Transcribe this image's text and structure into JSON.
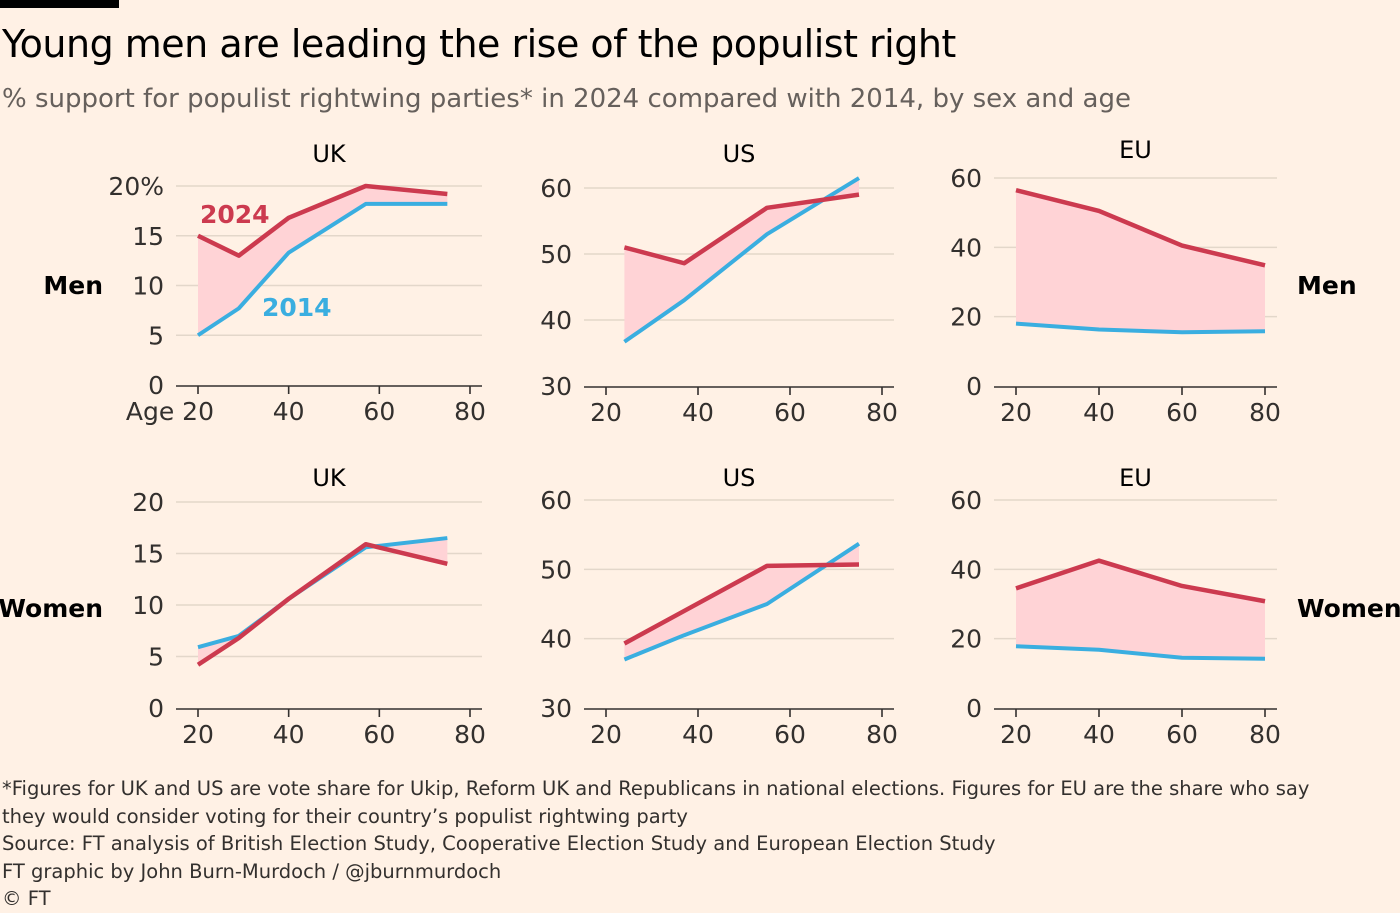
{
  "title": "Young men are leading the rise of the populist right",
  "subtitle": "% support for populist rightwing parties* in 2024 compared with 2014, by sex and age",
  "row_labels": {
    "men": "Men",
    "women": "Women"
  },
  "colors": {
    "2024": "#cc3a4f",
    "2014": "#3aaee0",
    "fill": "#ffd3d6",
    "grid": "#e3d7ca",
    "axis": "#33302e",
    "text": "#33302e"
  },
  "footnotes": [
    "*Figures for UK and US are vote share for Ukip, Reform UK and Republicans in national elections. Figures for EU are the share who say",
    "they would consider voting for their country’s populist rightwing party",
    "Source: FT analysis of British Election Study, Cooperative Election Study and European Election Study",
    "FT graphic by John Burn-Murdoch / @jburnmurdoch",
    "© FT"
  ],
  "chart_data": [
    {
      "type": "line",
      "region": "UK",
      "sex": "Men",
      "title": "UK",
      "xlim": [
        20,
        80
      ],
      "ylim": [
        0,
        20
      ],
      "xticks": [
        "Age 20",
        "40",
        "60",
        "80"
      ],
      "yticks": [
        "0",
        "5",
        "10",
        "15",
        "20%"
      ],
      "annotations": [
        "2024",
        "2014"
      ],
      "series": [
        {
          "name": "2024",
          "x": [
            20,
            29,
            40,
            57,
            75
          ],
          "y": [
            15,
            13,
            16.8,
            20,
            19.2
          ]
        },
        {
          "name": "2014",
          "x": [
            20,
            29,
            40,
            57,
            75
          ],
          "y": [
            5,
            7.7,
            13.3,
            18.2,
            18.2
          ]
        }
      ]
    },
    {
      "type": "line",
      "region": "US",
      "sex": "Men",
      "title": "US",
      "xlim": [
        20,
        80
      ],
      "ylim": [
        30,
        60
      ],
      "xticks": [
        "20",
        "40",
        "60",
        "80"
      ],
      "yticks": [
        "30",
        "40",
        "50",
        "60"
      ],
      "series": [
        {
          "name": "2024",
          "x": [
            24,
            37,
            55,
            75
          ],
          "y": [
            51,
            48.6,
            57,
            59
          ]
        },
        {
          "name": "2014",
          "x": [
            24,
            37,
            55,
            75
          ],
          "y": [
            36.7,
            43,
            53,
            61.5
          ]
        }
      ]
    },
    {
      "type": "line",
      "region": "EU",
      "sex": "Men",
      "title": "EU",
      "xlim": [
        20,
        80
      ],
      "ylim": [
        0,
        60
      ],
      "xticks": [
        "20",
        "40",
        "60",
        "80"
      ],
      "yticks": [
        "0",
        "20",
        "40",
        "60"
      ],
      "series": [
        {
          "name": "2024",
          "x": [
            20,
            40,
            60,
            80
          ],
          "y": [
            56.5,
            50.5,
            40.5,
            34.8
          ]
        },
        {
          "name": "2014",
          "x": [
            20,
            40,
            60,
            80
          ],
          "y": [
            18,
            16.3,
            15.5,
            15.8
          ]
        }
      ]
    },
    {
      "type": "line",
      "region": "UK",
      "sex": "Women",
      "title": "UK",
      "xlim": [
        20,
        80
      ],
      "ylim": [
        0,
        20
      ],
      "xticks": [
        "20",
        "40",
        "60",
        "80"
      ],
      "yticks": [
        "0",
        "5",
        "10",
        "15",
        "20"
      ],
      "series": [
        {
          "name": "2024",
          "x": [
            20,
            29,
            40,
            57,
            75
          ],
          "y": [
            4.2,
            6.8,
            10.6,
            15.9,
            14
          ]
        },
        {
          "name": "2014",
          "x": [
            20,
            29,
            40,
            57,
            75
          ],
          "y": [
            5.9,
            7,
            10.6,
            15.6,
            16.5
          ]
        }
      ]
    },
    {
      "type": "line",
      "region": "US",
      "sex": "Women",
      "title": "US",
      "xlim": [
        20,
        80
      ],
      "ylim": [
        30,
        60
      ],
      "xticks": [
        "20",
        "40",
        "60",
        "80"
      ],
      "yticks": [
        "30",
        "40",
        "50",
        "60"
      ],
      "series": [
        {
          "name": "2024",
          "x": [
            24,
            37,
            55,
            75
          ],
          "y": [
            39.3,
            44,
            50.5,
            50.7
          ]
        },
        {
          "name": "2014",
          "x": [
            24,
            37,
            55,
            75
          ],
          "y": [
            37,
            40.5,
            45,
            53.7
          ]
        }
      ]
    },
    {
      "type": "line",
      "region": "EU",
      "sex": "Women",
      "title": "EU",
      "xlim": [
        20,
        80
      ],
      "ylim": [
        0,
        60
      ],
      "xticks": [
        "20",
        "40",
        "60",
        "80"
      ],
      "yticks": [
        "0",
        "20",
        "40",
        "60"
      ],
      "series": [
        {
          "name": "2024",
          "x": [
            20,
            40,
            60,
            80
          ],
          "y": [
            34.5,
            42.5,
            35.2,
            30.8
          ]
        },
        {
          "name": "2014",
          "x": [
            20,
            40,
            60,
            80
          ],
          "y": [
            17.8,
            16.8,
            14.5,
            14.2
          ]
        }
      ]
    }
  ]
}
